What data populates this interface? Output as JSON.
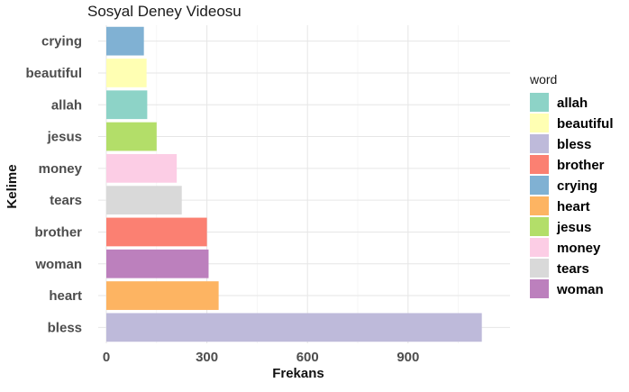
{
  "chart_data": {
    "type": "bar",
    "orientation": "horizontal",
    "title": "Sosyal Deney Videosu",
    "xlabel": "Frekans",
    "ylabel": "Kelime",
    "categories": [
      "bless",
      "heart",
      "woman",
      "brother",
      "tears",
      "money",
      "jesus",
      "allah",
      "beautiful",
      "crying"
    ],
    "values": [
      1120,
      335,
      305,
      300,
      225,
      210,
      150,
      122,
      120,
      112
    ],
    "colors": [
      "#BEBADA",
      "#FDB462",
      "#BC80BD",
      "#FB8072",
      "#D9D9D9",
      "#FCCDE5",
      "#B3DE69",
      "#8DD3C7",
      "#FFFFB3",
      "#80B1D3"
    ],
    "xlim": [
      0,
      1180
    ],
    "xticks": [
      0,
      300,
      600,
      900
    ],
    "xtick_labels": [
      "0",
      "300",
      "600",
      "900"
    ],
    "grid": true,
    "legend": {
      "title": "word",
      "placement": "right",
      "entries": [
        "allah",
        "beautiful",
        "bless",
        "brother",
        "crying",
        "heart",
        "jesus",
        "money",
        "tears",
        "woman"
      ],
      "colors": [
        "#8DD3C7",
        "#FFFFB3",
        "#BEBADA",
        "#FB8072",
        "#80B1D3",
        "#FDB462",
        "#B3DE69",
        "#FCCDE5",
        "#D9D9D9",
        "#BC80BD"
      ]
    }
  }
}
